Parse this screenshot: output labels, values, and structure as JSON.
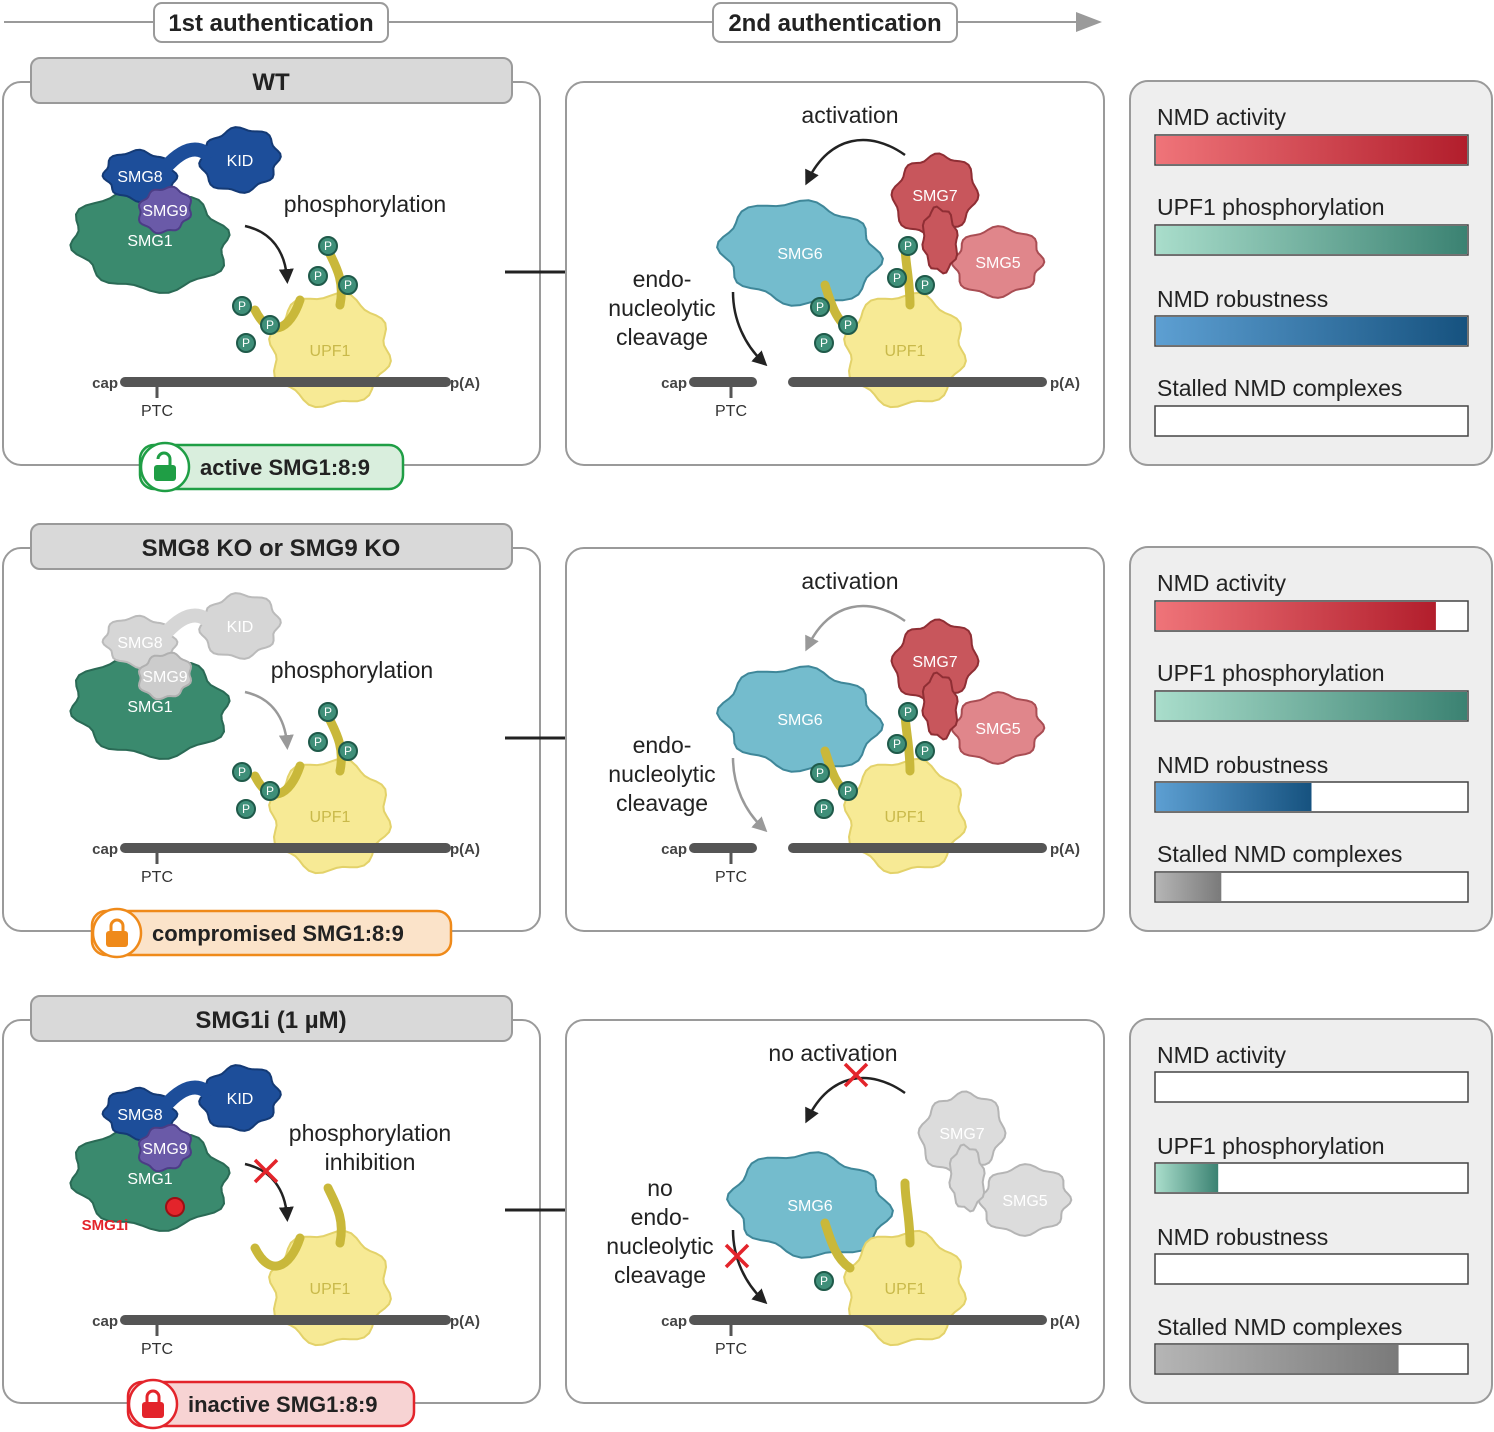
{
  "stages": {
    "first": "1st authentication",
    "second": "2nd authentication"
  },
  "labels": {
    "cap": "cap",
    "polyA": "p(A)",
    "ptc": "PTC",
    "p": "P",
    "upf1": "UPF1",
    "smg1": "SMG1",
    "smg8": "SMG8",
    "smg9": "SMG9",
    "kid": "KID",
    "smg5": "SMG5",
    "smg6": "SMG6",
    "smg7": "SMG7",
    "smg1i": "SMG1i",
    "phosphorylation": "phosphorylation",
    "activation": "activation",
    "endo1": "endo-",
    "endo2": "nucleolytic",
    "endo3": "cleavage",
    "phos_inhib1": "phosphorylation",
    "phos_inhib2": "inhibition",
    "no_activation": "no activation",
    "no": "no"
  },
  "conditions": [
    {
      "title": "WT",
      "state": "active SMG1:8:9",
      "state_color": "#1f9e45",
      "state_fill": "#d9eedd"
    },
    {
      "title": "SMG8 KO or SMG9 KO",
      "state": "compromised SMG1:8:9",
      "state_color": "#ef8a1a",
      "state_fill": "#fbe3c9"
    },
    {
      "title": "SMG1i (1 µM)",
      "state": "inactive SMG1:8:9",
      "state_color": "#e3242b",
      "state_fill": "#f7d3d3"
    }
  ],
  "metrics": {
    "names": [
      "NMD activity",
      "UPF1 phosphorylation",
      "NMD robustness",
      "Stalled NMD complexes"
    ],
    "colors": [
      [
        "#ef7479",
        "#b21e2c"
      ],
      [
        "#a9ddcb",
        "#3b8272"
      ],
      [
        "#5d9fd2",
        "#16527f"
      ],
      [
        "#b5b5b5",
        "#7a7a7a"
      ]
    ],
    "levels": [
      [
        1.0,
        1.0,
        1.0,
        0.0
      ],
      [
        0.9,
        1.0,
        0.5,
        0.21
      ],
      [
        0.0,
        0.2,
        0.0,
        0.78
      ]
    ]
  }
}
